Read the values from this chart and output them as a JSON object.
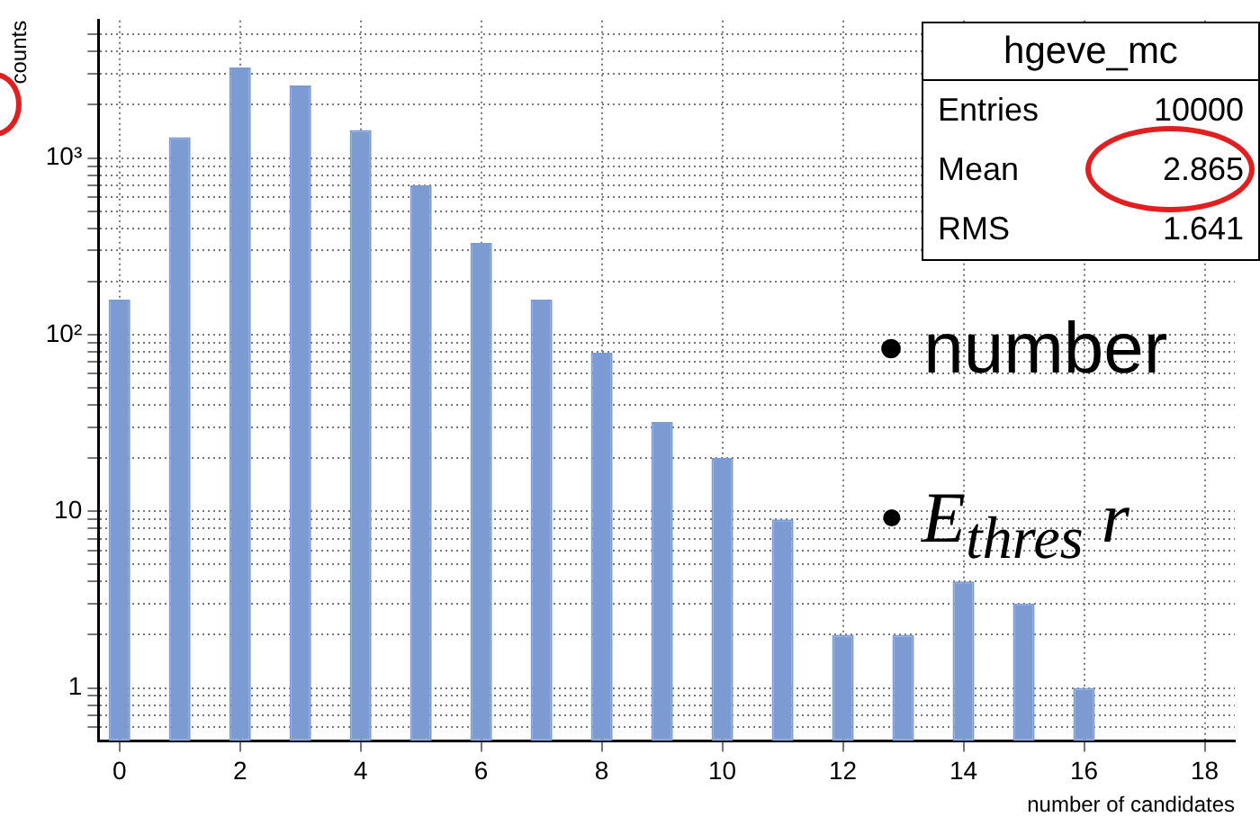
{
  "chart_data": {
    "type": "bar",
    "x": [
      0,
      1,
      2,
      3,
      4,
      5,
      6,
      7,
      8,
      9,
      10,
      11,
      12,
      13,
      14,
      15,
      16
    ],
    "series": [
      {
        "color": "#7b9bd2",
        "values": [
          158,
          1310,
          3250,
          2570,
          1440,
          700,
          330,
          158,
          79,
          32,
          20,
          9,
          2,
          2,
          4,
          3,
          1
        ]
      }
    ],
    "xlabel": "number of candidates",
    "ylabel": "counts",
    "xlim": [
      -0.35,
      18.5
    ],
    "xticks": [
      0,
      2,
      4,
      6,
      8,
      10,
      12,
      14,
      16,
      18
    ],
    "ylim": [
      0.5,
      6000
    ],
    "log": "y",
    "yticks": [
      {
        "value": 0.6,
        "label": null
      },
      {
        "value": 0.7,
        "label": null
      },
      {
        "value": 0.8,
        "label": null
      },
      {
        "value": 0.9,
        "label": null
      },
      1,
      {
        "value": 2,
        "label": null
      },
      {
        "value": 3,
        "label": null
      },
      {
        "value": 4,
        "label": null
      },
      {
        "value": 5,
        "label": null
      },
      {
        "value": 6,
        "label": null
      },
      {
        "value": 7,
        "label": null
      },
      {
        "value": 8,
        "label": null
      },
      {
        "value": 9,
        "label": null
      },
      10,
      {
        "value": 20,
        "label": null
      },
      {
        "value": 30,
        "label": null
      },
      {
        "value": 40,
        "label": null
      },
      {
        "value": 50,
        "label": null
      },
      {
        "value": 60,
        "label": null
      },
      {
        "value": 70,
        "label": null
      },
      {
        "value": 80,
        "label": null
      },
      {
        "value": 90,
        "label": null
      },
      {
        "value": 100,
        "label": "10²"
      },
      {
        "value": 200,
        "label": null
      },
      {
        "value": 300,
        "label": null
      },
      {
        "value": 400,
        "label": null
      },
      {
        "value": 500,
        "label": null
      },
      {
        "value": 600,
        "label": null
      },
      {
        "value": 700,
        "label": null
      },
      {
        "value": 800,
        "label": null
      },
      {
        "value": 900,
        "label": null
      },
      {
        "value": 1000,
        "label": "10³"
      },
      {
        "value": 2000,
        "label": null
      },
      {
        "value": 3000,
        "label": null
      },
      {
        "value": 4000,
        "label": null
      },
      {
        "value": 5000,
        "label": null
      }
    ],
    "grid": true,
    "annotations": [
      "hgeve_mc",
      "Entries 10000",
      "Mean 2.865",
      "RMS 1.641",
      "• number",
      "• E$_{thres}$ r"
    ]
  }
}
